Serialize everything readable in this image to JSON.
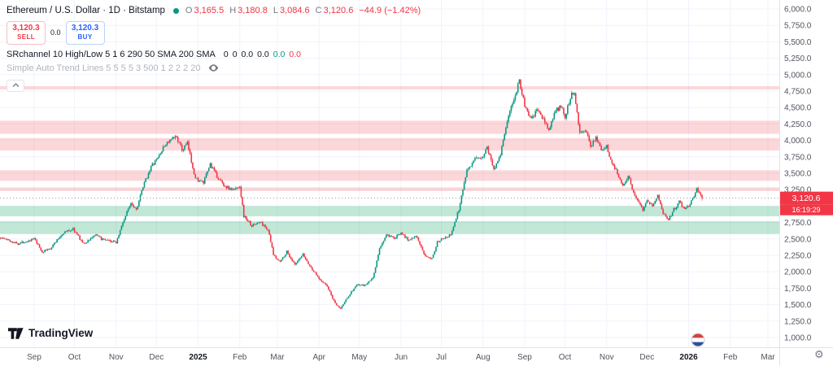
{
  "header": {
    "symbol_title": "Ethereum / U.S. Dollar · 1D · Bitstamp",
    "ohlc": {
      "open_label": "O",
      "open": "3,165.5",
      "high_label": "H",
      "high": "3,180.8",
      "low_label": "L",
      "low": "3,084.6",
      "close_label": "C",
      "close": "3,120.6",
      "change": "−44.9 (−1.42%)"
    },
    "trade_panel": {
      "sell_price": "3,120.3",
      "sell_label": "SELL",
      "spread": "0.0",
      "buy_price": "3,120.3",
      "buy_label": "BUY"
    },
    "indicators": [
      {
        "name": "SRchannel 10 High/Low 5 1 6 290 50 SMA 200 SMA",
        "values": [
          {
            "text": "0",
            "color": "#131722"
          },
          {
            "text": "0",
            "color": "#131722"
          },
          {
            "text": "0.0",
            "color": "#131722"
          },
          {
            "text": "0.0",
            "color": "#131722"
          },
          {
            "text": "0.0",
            "color": "#089981"
          },
          {
            "text": "0.0",
            "color": "#F23645"
          }
        ],
        "hidden": false
      },
      {
        "name": "Simple Auto Trend Lines 5 5 5 5 3 500 1 2 2 2 20",
        "values": [],
        "hidden": true
      }
    ]
  },
  "chart_data": {
    "type": "candlestick",
    "title": "Ethereum / U.S. Dollar",
    "exchange": "Bitstamp",
    "interval": "1D",
    "units": "USD",
    "last_price": 3120.6,
    "last_price_label": "3,120.6",
    "last_candle": {
      "open": 3165.5,
      "high": 3180.8,
      "low": 3084.6,
      "close": 3120.6
    },
    "change": -44.9,
    "change_pct": -1.42,
    "countdown": "16:19:29",
    "y_axis": {
      "min": 1000,
      "max": 6000,
      "step": 250,
      "ticks": [
        {
          "value": 6000,
          "label": "6,000.0"
        },
        {
          "value": 5750,
          "label": "5,750.0"
        },
        {
          "value": 5500,
          "label": "5,500.0"
        },
        {
          "value": 5250,
          "label": "5,250.0"
        },
        {
          "value": 5000,
          "label": "5,000.0"
        },
        {
          "value": 4750,
          "label": "4,750.0"
        },
        {
          "value": 4500,
          "label": "4,500.0"
        },
        {
          "value": 4250,
          "label": "4,250.0"
        },
        {
          "value": 4000,
          "label": "4,000.0"
        },
        {
          "value": 3750,
          "label": "3,750.0"
        },
        {
          "value": 3500,
          "label": "3,500.0"
        },
        {
          "value": 3250,
          "label": "3,250.0"
        },
        {
          "value": 3000,
          "label": "3,000.0"
        },
        {
          "value": 2750,
          "label": "2,750.0"
        },
        {
          "value": 2500,
          "label": "2,500.0"
        },
        {
          "value": 2250,
          "label": "2,250.0"
        },
        {
          "value": 2000,
          "label": "2,000.0"
        },
        {
          "value": 1750,
          "label": "1,750.0"
        },
        {
          "value": 1500,
          "label": "1,500.0"
        },
        {
          "value": 1250,
          "label": "1,250.0"
        },
        {
          "value": 1000,
          "label": "1,000.0"
        }
      ]
    },
    "x_axis": {
      "months": [
        {
          "label": "Sep",
          "day": 0
        },
        {
          "label": "Oct",
          "day": 30
        },
        {
          "label": "Nov",
          "day": 61
        },
        {
          "label": "Dec",
          "day": 91
        },
        {
          "label": "2025",
          "day": 122,
          "bold": true
        },
        {
          "label": "Feb",
          "day": 153
        },
        {
          "label": "Mar",
          "day": 181
        },
        {
          "label": "Apr",
          "day": 212
        },
        {
          "label": "May",
          "day": 242
        },
        {
          "label": "Jun",
          "day": 273
        },
        {
          "label": "Jul",
          "day": 303
        },
        {
          "label": "Aug",
          "day": 334
        },
        {
          "label": "Sep",
          "day": 365
        },
        {
          "label": "Oct",
          "day": 395
        },
        {
          "label": "Nov",
          "day": 426
        },
        {
          "label": "Dec",
          "day": 456
        },
        {
          "label": "2026",
          "day": 487,
          "bold": true
        },
        {
          "label": "Feb",
          "day": 518
        },
        {
          "label": "Mar",
          "day": 546
        }
      ]
    },
    "zones": [
      {
        "from": 4775,
        "to": 4825,
        "type": "resistance"
      },
      {
        "from": 4100,
        "to": 4300,
        "type": "resistance"
      },
      {
        "from": 3845,
        "to": 4035,
        "type": "resistance"
      },
      {
        "from": 3385,
        "to": 3545,
        "type": "resistance"
      },
      {
        "from": 3230,
        "to": 3285,
        "type": "resistance"
      },
      {
        "from": 2845,
        "to": 3000,
        "type": "support"
      },
      {
        "from": 2575,
        "to": 2770,
        "type": "support"
      }
    ],
    "price_path": [
      [
        -25,
        2520
      ],
      [
        -12,
        2430
      ],
      [
        0,
        2500
      ],
      [
        6,
        2300
      ],
      [
        12,
        2360
      ],
      [
        22,
        2600
      ],
      [
        29,
        2650
      ],
      [
        37,
        2420
      ],
      [
        45,
        2560
      ],
      [
        52,
        2480
      ],
      [
        61,
        2450
      ],
      [
        66,
        2750
      ],
      [
        72,
        3060
      ],
      [
        76,
        2950
      ],
      [
        82,
        3350
      ],
      [
        87,
        3600
      ],
      [
        91,
        3700
      ],
      [
        98,
        3950
      ],
      [
        106,
        4060
      ],
      [
        110,
        3850
      ],
      [
        114,
        3950
      ],
      [
        120,
        3420
      ],
      [
        126,
        3350
      ],
      [
        131,
        3640
      ],
      [
        136,
        3450
      ],
      [
        142,
        3300
      ],
      [
        148,
        3240
      ],
      [
        153,
        3310
      ],
      [
        156,
        2850
      ],
      [
        162,
        2700
      ],
      [
        168,
        2760
      ],
      [
        174,
        2640
      ],
      [
        178,
        2260
      ],
      [
        183,
        2150
      ],
      [
        188,
        2310
      ],
      [
        194,
        2100
      ],
      [
        200,
        2260
      ],
      [
        206,
        2060
      ],
      [
        212,
        1900
      ],
      [
        218,
        1780
      ],
      [
        224,
        1510
      ],
      [
        228,
        1440
      ],
      [
        233,
        1610
      ],
      [
        240,
        1800
      ],
      [
        246,
        1790
      ],
      [
        252,
        1900
      ],
      [
        257,
        2350
      ],
      [
        262,
        2560
      ],
      [
        268,
        2500
      ],
      [
        273,
        2610
      ],
      [
        278,
        2480
      ],
      [
        284,
        2560
      ],
      [
        290,
        2260
      ],
      [
        296,
        2210
      ],
      [
        300,
        2450
      ],
      [
        303,
        2510
      ],
      [
        310,
        2560
      ],
      [
        316,
        2950
      ],
      [
        322,
        3560
      ],
      [
        328,
        3700
      ],
      [
        334,
        3760
      ],
      [
        337,
        3900
      ],
      [
        342,
        3560
      ],
      [
        347,
        3800
      ],
      [
        352,
        4300
      ],
      [
        357,
        4620
      ],
      [
        361,
        4920
      ],
      [
        365,
        4520
      ],
      [
        370,
        4310
      ],
      [
        374,
        4460
      ],
      [
        378,
        4350
      ],
      [
        383,
        4160
      ],
      [
        388,
        4450
      ],
      [
        392,
        4510
      ],
      [
        395,
        4360
      ],
      [
        399,
        4660
      ],
      [
        402,
        4750
      ],
      [
        406,
        4120
      ],
      [
        410,
        4160
      ],
      [
        414,
        3910
      ],
      [
        418,
        4060
      ],
      [
        422,
        3860
      ],
      [
        426,
        3900
      ],
      [
        430,
        3650
      ],
      [
        434,
        3510
      ],
      [
        438,
        3310
      ],
      [
        442,
        3460
      ],
      [
        446,
        3210
      ],
      [
        450,
        3060
      ],
      [
        453,
        2950
      ],
      [
        456,
        3100
      ],
      [
        460,
        3010
      ],
      [
        464,
        3150
      ],
      [
        468,
        2900
      ],
      [
        472,
        2790
      ],
      [
        476,
        2950
      ],
      [
        480,
        3060
      ],
      [
        484,
        2960
      ],
      [
        487,
        3010
      ],
      [
        490,
        3110
      ],
      [
        493,
        3260
      ],
      [
        495,
        3210
      ],
      [
        497,
        3120.6
      ]
    ],
    "colors": {
      "up": "#089981",
      "down": "#F23645",
      "resistance": "rgba(242,54,69,0.20)",
      "support": "rgba(34,168,109,0.28)",
      "grid": "#f0f3fa",
      "axis_text": "#50535e",
      "axis_border": "#e0e3eb",
      "price_line": "#9598a1"
    }
  },
  "footer": {
    "brand": "TradingView"
  }
}
